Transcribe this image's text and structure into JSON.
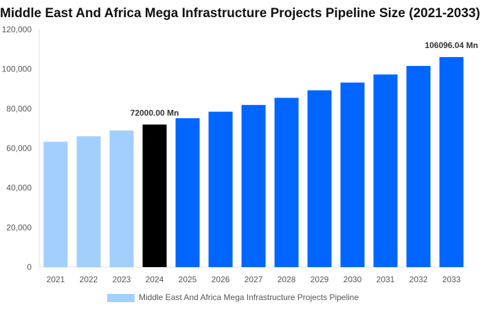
{
  "chart_data": {
    "type": "bar",
    "title": "Middle East And Africa Mega Infrastructure Projects Pipeline Size (2021-2033)",
    "categories": [
      "2021",
      "2022",
      "2023",
      "2024",
      "2025",
      "2026",
      "2027",
      "2028",
      "2029",
      "2030",
      "2031",
      "2032",
      "2033"
    ],
    "series": [
      {
        "name": "Middle East And Africa Mega Infrastructure Projects Pipeline",
        "values": [
          63300,
          66100,
          69000,
          72000,
          75200,
          78500,
          81900,
          85500,
          89300,
          93200,
          97300,
          101600,
          106096.04
        ]
      }
    ],
    "ylim": [
      0,
      120000
    ],
    "yticks": [
      "0",
      "20,000",
      "40,000",
      "60,000",
      "80,000",
      "100,000",
      "120,000"
    ],
    "data_labels": {
      "3": "72000.00 Mn",
      "12": "106096.04 Mn"
    },
    "colors": {
      "historical": "#a3cfff",
      "base_year": "#000000",
      "forecast": "#0066ff"
    },
    "legend_position": "bottom",
    "grid": false
  }
}
